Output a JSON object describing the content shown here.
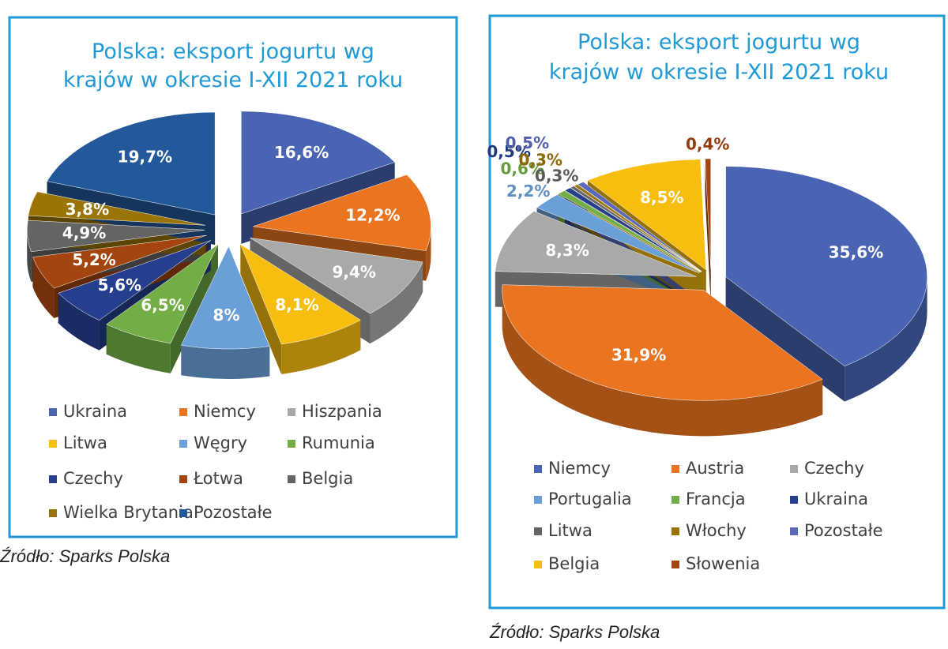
{
  "chart_data": [
    {
      "type": "pie",
      "title": [
        "Polska: eksport jogurtu wg",
        "krajów w okresie I-XII 2021 roku"
      ],
      "categories": [
        "Ukraina",
        "Niemcy",
        "Hiszpania",
        "Litwa",
        "Węgry",
        "Rumunia",
        "Czechy",
        "Łotwa",
        "Belgia",
        "Wielka Brytania",
        "Pozostałe"
      ],
      "values": [
        16.6,
        12.2,
        9.4,
        8.1,
        8,
        6.5,
        5.6,
        5.2,
        4.9,
        3.8,
        19.7
      ],
      "value_labels": [
        "16,6%",
        "12,2%",
        "9,4%",
        "8,1%",
        "8%",
        "6,5%",
        "5,6%",
        "5,2%",
        "4,9%",
        "3,8%",
        "19,7%"
      ],
      "colors": [
        "#4a64b4",
        "#ea7420",
        "#a9a9a9",
        "#f7bd0f",
        "#6a9fd8",
        "#72ad45",
        "#253f8e",
        "#a4450f",
        "#646464",
        "#9b7406",
        "#23599a"
      ],
      "source": "Źródło: Sparks Polska"
    },
    {
      "type": "pie",
      "title": [
        "Polska: eksport jogurtu wg",
        "krajów w okresie I-XII 2021 roku"
      ],
      "categories": [
        "Niemcy",
        "Austria",
        "Czechy",
        "Portugalia",
        "Francja",
        "Ukraina",
        "Litwa",
        "Włochy",
        "Pozostałe",
        "Belgia",
        "Słowenia"
      ],
      "values": [
        35.6,
        31.9,
        8.3,
        2.2,
        0.6,
        0.5,
        0.3,
        0.3,
        0.5,
        8.5,
        0.4
      ],
      "value_labels": [
        "35,6%",
        "31,9%",
        "8,3%",
        "2,2%",
        "0,6%",
        "0,5%",
        "0,3%",
        "0,3%",
        "0,5%",
        "8,5%",
        "0,4%"
      ],
      "colors": [
        "#4a64b4",
        "#ea7420",
        "#a9a9a9",
        "#6a9fd8",
        "#72ad45",
        "#253f8e",
        "#646464",
        "#9b7406",
        "#5a6ab8",
        "#f7bd0f",
        "#a4450f"
      ],
      "source": "Źródło: Sparks Polska"
    }
  ]
}
